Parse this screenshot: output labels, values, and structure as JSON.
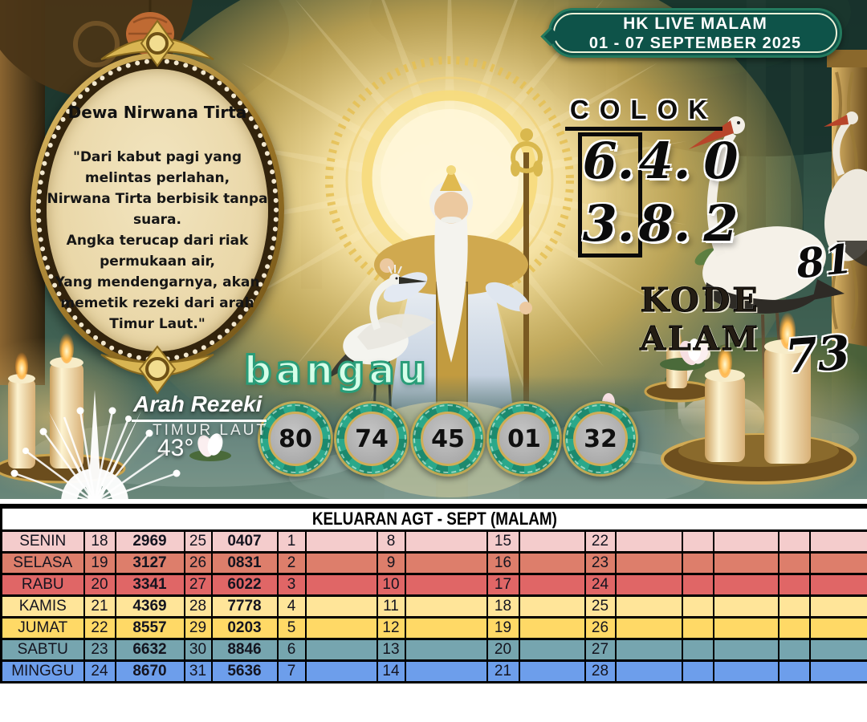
{
  "badge": {
    "line1": "HK LIVE MALAM",
    "line2": "01 - 07 SEPTEMBER 2025"
  },
  "oracle": {
    "title": "Dewa Nirwana Tirta",
    "poem_lines": [
      "\"Dari kabut pagi yang",
      "melintas perlahan,",
      "Nirwana Tirta berbisik tanpa",
      "suara.",
      "Angka terucap dari riak",
      "permukaan air,",
      "Yang mendengarnya, akan",
      "memetik rezeki dari arah",
      "Timur Laut.\""
    ]
  },
  "colok": {
    "label": "COLOK",
    "rows": [
      [
        "6.",
        "4.",
        "0"
      ],
      [
        "3.",
        "8.",
        "2"
      ]
    ]
  },
  "kode_alam": {
    "label": "KODE ALAM",
    "numbers": [
      "81",
      "73"
    ]
  },
  "bangau": {
    "label": "bangau",
    "numbers": [
      "80",
      "74",
      "45",
      "01",
      "32"
    ]
  },
  "arah_rezeki": {
    "title": "Arah Rezeki",
    "direction": "TIMUR LAUT",
    "degrees": "43°"
  },
  "table": {
    "title": "KELUARAN AGT - SEPT (MALAM)",
    "rows": [
      {
        "day": "SENIN",
        "color": "#f4cccc",
        "cells": [
          "18",
          "2969",
          "25",
          "0407",
          "1",
          "",
          "8",
          "",
          "15",
          "",
          "22",
          "",
          "",
          "",
          "",
          ""
        ]
      },
      {
        "day": "SELASA",
        "color": "#dd7e6b",
        "cells": [
          "19",
          "3127",
          "26",
          "0831",
          "2",
          "",
          "9",
          "",
          "16",
          "",
          "23",
          "",
          "",
          "",
          "",
          ""
        ]
      },
      {
        "day": "RABU",
        "color": "#e06666",
        "cells": [
          "20",
          "3341",
          "27",
          "6022",
          "3",
          "",
          "10",
          "",
          "17",
          "",
          "24",
          "",
          "",
          "",
          "",
          ""
        ]
      },
      {
        "day": "KAMIS",
        "color": "#ffe599",
        "cells": [
          "21",
          "4369",
          "28",
          "7778",
          "4",
          "",
          "11",
          "",
          "18",
          "",
          "25",
          "",
          "",
          "",
          "",
          ""
        ]
      },
      {
        "day": "JUMAT",
        "color": "#ffd966",
        "cells": [
          "22",
          "8557",
          "29",
          "0203",
          "5",
          "",
          "12",
          "",
          "19",
          "",
          "26",
          "",
          "",
          "",
          "",
          ""
        ]
      },
      {
        "day": "SABTU",
        "color": "#76a5af",
        "cells": [
          "23",
          "6632",
          "30",
          "8846",
          "6",
          "",
          "13",
          "",
          "20",
          "",
          "27",
          "",
          "",
          "",
          "",
          ""
        ]
      },
      {
        "day": "MINGGU",
        "color": "#6d9eeb",
        "cells": [
          "24",
          "8670",
          "31",
          "5636",
          "7",
          "",
          "14",
          "",
          "21",
          "",
          "28",
          "",
          "",
          "",
          "",
          ""
        ]
      }
    ]
  },
  "colors": {
    "badge_green": "#0e5349",
    "badge_inner_border": "#eef2d8",
    "frame_gold": "#d9b552",
    "frame_cream": "#ecdcb4",
    "bangau_fill": "#d6ffe9",
    "bangau_stroke": "#2a9d79",
    "mandala_teal": "#1c8a6e",
    "mandala_center_gray": "#b3b3b3"
  }
}
